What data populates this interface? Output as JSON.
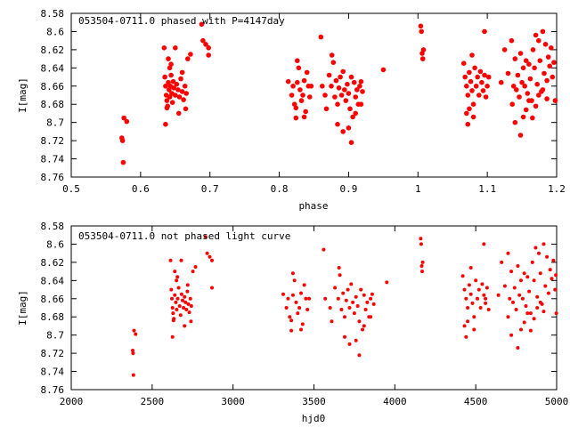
{
  "chart_data": [
    {
      "type": "scatter",
      "title": "053504-0711.0 phased with P=4147day",
      "xlabel": "phase",
      "ylabel": "I[mag]",
      "xlim": [
        0.5,
        1.2
      ],
      "ylim": [
        8.58,
        8.76
      ],
      "y_inverted": true,
      "grid": false,
      "color": "#ff0000",
      "xticks": [
        "0.5",
        "0.6",
        "0.7",
        "0.8",
        "0.9",
        "1",
        "1.1",
        "1.2"
      ],
      "yticks": [
        "8.58",
        "8.6",
        "8.62",
        "8.64",
        "8.66",
        "8.68",
        "8.7",
        "8.72",
        "8.74",
        "8.76"
      ],
      "points": [
        [
          0.573,
          8.717
        ],
        [
          0.574,
          8.72
        ],
        [
          0.575,
          8.744
        ],
        [
          0.576,
          8.695
        ],
        [
          0.58,
          8.699
        ],
        [
          0.635,
          8.65
        ],
        [
          0.636,
          8.66
        ],
        [
          0.637,
          8.67
        ],
        [
          0.638,
          8.676
        ],
        [
          0.639,
          8.682
        ],
        [
          0.64,
          8.656
        ],
        [
          0.641,
          8.664
        ],
        [
          0.642,
          8.672
        ],
        [
          0.643,
          8.66
        ],
        [
          0.644,
          8.648
        ],
        [
          0.645,
          8.668
        ],
        [
          0.646,
          8.678
        ],
        [
          0.647,
          8.655
        ],
        [
          0.648,
          8.662
        ],
        [
          0.65,
          8.67
        ],
        [
          0.652,
          8.658
        ],
        [
          0.654,
          8.664
        ],
        [
          0.656,
          8.672
        ],
        [
          0.658,
          8.652
        ],
        [
          0.66,
          8.666
        ],
        [
          0.662,
          8.675
        ],
        [
          0.664,
          8.66
        ],
        [
          0.666,
          8.668
        ],
        [
          0.636,
          8.702
        ],
        [
          0.638,
          8.684
        ],
        [
          0.64,
          8.63
        ],
        [
          0.644,
          8.636
        ],
        [
          0.65,
          8.618
        ],
        [
          0.655,
          8.69
        ],
        [
          0.66,
          8.645
        ],
        [
          0.665,
          8.685
        ],
        [
          0.634,
          8.618
        ],
        [
          0.642,
          8.64
        ],
        [
          0.668,
          8.63
        ],
        [
          0.672,
          8.625
        ],
        [
          0.688,
          8.592
        ],
        [
          0.69,
          8.61
        ],
        [
          0.694,
          8.614
        ],
        [
          0.698,
          8.618
        ],
        [
          0.698,
          8.626
        ],
        [
          0.813,
          8.655
        ],
        [
          0.818,
          8.67
        ],
        [
          0.82,
          8.66
        ],
        [
          0.822,
          8.68
        ],
        [
          0.824,
          8.684
        ],
        [
          0.826,
          8.656
        ],
        [
          0.828,
          8.64
        ],
        [
          0.83,
          8.664
        ],
        [
          0.832,
          8.676
        ],
        [
          0.834,
          8.67
        ],
        [
          0.836,
          8.654
        ],
        [
          0.838,
          8.688
        ],
        [
          0.84,
          8.645
        ],
        [
          0.842,
          8.66
        ],
        [
          0.844,
          8.672
        ],
        [
          0.824,
          8.695
        ],
        [
          0.826,
          8.632
        ],
        [
          0.846,
          8.66
        ],
        [
          0.836,
          8.694
        ],
        [
          0.86,
          8.606
        ],
        [
          0.862,
          8.66
        ],
        [
          0.866,
          8.67
        ],
        [
          0.868,
          8.685
        ],
        [
          0.872,
          8.648
        ],
        [
          0.875,
          8.66
        ],
        [
          0.878,
          8.634
        ],
        [
          0.88,
          8.672
        ],
        [
          0.882,
          8.654
        ],
        [
          0.884,
          8.68
        ],
        [
          0.886,
          8.662
        ],
        [
          0.888,
          8.65
        ],
        [
          0.89,
          8.67
        ],
        [
          0.892,
          8.644
        ],
        [
          0.894,
          8.664
        ],
        [
          0.896,
          8.676
        ],
        [
          0.898,
          8.658
        ],
        [
          0.9,
          8.668
        ],
        [
          0.902,
          8.685
        ],
        [
          0.904,
          8.65
        ],
        [
          0.906,
          8.694
        ],
        [
          0.908,
          8.656
        ],
        [
          0.91,
          8.672
        ],
        [
          0.912,
          8.664
        ],
        [
          0.914,
          8.68
        ],
        [
          0.916,
          8.66
        ],
        [
          0.918,
          8.655
        ],
        [
          0.92,
          8.666
        ],
        [
          0.876,
          8.626
        ],
        [
          0.884,
          8.702
        ],
        [
          0.892,
          8.71
        ],
        [
          0.9,
          8.706
        ],
        [
          0.904,
          8.722
        ],
        [
          0.91,
          8.69
        ],
        [
          0.918,
          8.68
        ],
        [
          0.95,
          8.642
        ],
        [
          1.004,
          8.594
        ],
        [
          1.005,
          8.6
        ],
        [
          1.006,
          8.624
        ],
        [
          1.007,
          8.63
        ],
        [
          1.008,
          8.62
        ],
        [
          1.066,
          8.635
        ],
        [
          1.068,
          8.65
        ],
        [
          1.07,
          8.66
        ],
        [
          1.072,
          8.67
        ],
        [
          1.074,
          8.645
        ],
        [
          1.076,
          8.655
        ],
        [
          1.078,
          8.665
        ],
        [
          1.08,
          8.68
        ],
        [
          1.082,
          8.64
        ],
        [
          1.084,
          8.66
        ],
        [
          1.086,
          8.65
        ],
        [
          1.088,
          8.67
        ],
        [
          1.09,
          8.644
        ],
        [
          1.092,
          8.656
        ],
        [
          1.094,
          8.665
        ],
        [
          1.096,
          8.648
        ],
        [
          1.098,
          8.672
        ],
        [
          1.1,
          8.66
        ],
        [
          1.102,
          8.65
        ],
        [
          1.07,
          8.69
        ],
        [
          1.072,
          8.702
        ],
        [
          1.074,
          8.685
        ],
        [
          1.078,
          8.626
        ],
        [
          1.096,
          8.6
        ],
        [
          1.08,
          8.694
        ],
        [
          1.12,
          8.656
        ],
        [
          1.125,
          8.62
        ],
        [
          1.13,
          8.646
        ],
        [
          1.135,
          8.61
        ],
        [
          1.138,
          8.66
        ],
        [
          1.14,
          8.63
        ],
        [
          1.142,
          8.664
        ],
        [
          1.144,
          8.648
        ],
        [
          1.146,
          8.672
        ],
        [
          1.148,
          8.624
        ],
        [
          1.15,
          8.656
        ],
        [
          1.152,
          8.64
        ],
        [
          1.154,
          8.66
        ],
        [
          1.156,
          8.632
        ],
        [
          1.158,
          8.668
        ],
        [
          1.16,
          8.636
        ],
        [
          1.162,
          8.652
        ],
        [
          1.164,
          8.676
        ],
        [
          1.166,
          8.62
        ],
        [
          1.168,
          8.64
        ],
        [
          1.17,
          8.604
        ],
        [
          1.172,
          8.658
        ],
        [
          1.174,
          8.61
        ],
        [
          1.176,
          8.632
        ],
        [
          1.178,
          8.666
        ],
        [
          1.18,
          8.6
        ],
        [
          1.182,
          8.646
        ],
        [
          1.184,
          8.614
        ],
        [
          1.186,
          8.654
        ],
        [
          1.188,
          8.628
        ],
        [
          1.19,
          8.638
        ],
        [
          1.192,
          8.618
        ],
        [
          1.194,
          8.65
        ],
        [
          1.196,
          8.634
        ],
        [
          1.198,
          8.676
        ],
        [
          1.136,
          8.68
        ],
        [
          1.14,
          8.7
        ],
        [
          1.148,
          8.714
        ],
        [
          1.152,
          8.694
        ],
        [
          1.156,
          8.686
        ],
        [
          1.16,
          8.676
        ],
        [
          1.165,
          8.695
        ],
        [
          1.17,
          8.682
        ],
        [
          1.174,
          8.67
        ],
        [
          1.18,
          8.664
        ],
        [
          1.186,
          8.674
        ]
      ]
    },
    {
      "type": "scatter",
      "title": "053504-0711.0 not phased light curve",
      "xlabel": "hjd0",
      "ylabel": "I[mag]",
      "xlim": [
        2000,
        5000
      ],
      "ylim": [
        8.58,
        8.76
      ],
      "y_inverted": true,
      "grid": false,
      "color": "#ff0000",
      "xticks": [
        "2000",
        "2500",
        "3000",
        "3500",
        "4000",
        "4500",
        "5000"
      ],
      "yticks": [
        "8.58",
        "8.6",
        "8.62",
        "8.64",
        "8.66",
        "8.68",
        "8.7",
        "8.72",
        "8.74",
        "8.76"
      ],
      "points": [
        [
          2380,
          8.717
        ],
        [
          2382,
          8.72
        ],
        [
          2384,
          8.744
        ],
        [
          2388,
          8.695
        ],
        [
          2398,
          8.699
        ],
        [
          2618,
          8.65
        ],
        [
          2622,
          8.66
        ],
        [
          2626,
          8.67
        ],
        [
          2630,
          8.676
        ],
        [
          2634,
          8.682
        ],
        [
          2640,
          8.656
        ],
        [
          2646,
          8.664
        ],
        [
          2652,
          8.672
        ],
        [
          2658,
          8.66
        ],
        [
          2664,
          8.648
        ],
        [
          2670,
          8.668
        ],
        [
          2676,
          8.678
        ],
        [
          2682,
          8.655
        ],
        [
          2688,
          8.662
        ],
        [
          2694,
          8.67
        ],
        [
          2700,
          8.658
        ],
        [
          2706,
          8.664
        ],
        [
          2712,
          8.672
        ],
        [
          2718,
          8.652
        ],
        [
          2724,
          8.666
        ],
        [
          2730,
          8.675
        ],
        [
          2736,
          8.66
        ],
        [
          2742,
          8.668
        ],
        [
          2626,
          8.702
        ],
        [
          2632,
          8.684
        ],
        [
          2640,
          8.63
        ],
        [
          2656,
          8.636
        ],
        [
          2680,
          8.618
        ],
        [
          2700,
          8.69
        ],
        [
          2720,
          8.645
        ],
        [
          2740,
          8.685
        ],
        [
          2614,
          8.618
        ],
        [
          2650,
          8.64
        ],
        [
          2752,
          8.63
        ],
        [
          2768,
          8.625
        ],
        [
          2830,
          8.592
        ],
        [
          2840,
          8.61
        ],
        [
          2856,
          8.614
        ],
        [
          2870,
          8.618
        ],
        [
          2870,
          8.648
        ],
        [
          3310,
          8.655
        ],
        [
          3330,
          8.67
        ],
        [
          3340,
          8.66
        ],
        [
          3350,
          8.68
        ],
        [
          3360,
          8.684
        ],
        [
          3370,
          8.656
        ],
        [
          3380,
          8.64
        ],
        [
          3390,
          8.664
        ],
        [
          3400,
          8.676
        ],
        [
          3410,
          8.67
        ],
        [
          3420,
          8.654
        ],
        [
          3430,
          8.688
        ],
        [
          3440,
          8.645
        ],
        [
          3450,
          8.66
        ],
        [
          3460,
          8.672
        ],
        [
          3360,
          8.695
        ],
        [
          3370,
          8.632
        ],
        [
          3470,
          8.66
        ],
        [
          3420,
          8.694
        ],
        [
          3560,
          8.606
        ],
        [
          3570,
          8.66
        ],
        [
          3600,
          8.67
        ],
        [
          3610,
          8.685
        ],
        [
          3630,
          8.648
        ],
        [
          3650,
          8.66
        ],
        [
          3660,
          8.634
        ],
        [
          3670,
          8.672
        ],
        [
          3680,
          8.654
        ],
        [
          3690,
          8.68
        ],
        [
          3700,
          8.662
        ],
        [
          3710,
          8.65
        ],
        [
          3720,
          8.67
        ],
        [
          3730,
          8.644
        ],
        [
          3740,
          8.664
        ],
        [
          3750,
          8.676
        ],
        [
          3760,
          8.658
        ],
        [
          3770,
          8.668
        ],
        [
          3780,
          8.685
        ],
        [
          3790,
          8.65
        ],
        [
          3800,
          8.694
        ],
        [
          3810,
          8.656
        ],
        [
          3820,
          8.672
        ],
        [
          3830,
          8.664
        ],
        [
          3840,
          8.68
        ],
        [
          3850,
          8.66
        ],
        [
          3860,
          8.655
        ],
        [
          3870,
          8.666
        ],
        [
          3655,
          8.626
        ],
        [
          3690,
          8.702
        ],
        [
          3720,
          8.71
        ],
        [
          3760,
          8.706
        ],
        [
          3780,
          8.722
        ],
        [
          3810,
          8.69
        ],
        [
          3850,
          8.68
        ],
        [
          3950,
          8.642
        ],
        [
          4160,
          8.594
        ],
        [
          4163,
          8.6
        ],
        [
          4166,
          8.624
        ],
        [
          4169,
          8.63
        ],
        [
          4172,
          8.62
        ],
        [
          4420,
          8.635
        ],
        [
          4430,
          8.65
        ],
        [
          4440,
          8.66
        ],
        [
          4450,
          8.67
        ],
        [
          4460,
          8.645
        ],
        [
          4470,
          8.655
        ],
        [
          4480,
          8.665
        ],
        [
          4490,
          8.68
        ],
        [
          4500,
          8.64
        ],
        [
          4510,
          8.66
        ],
        [
          4520,
          8.65
        ],
        [
          4530,
          8.67
        ],
        [
          4540,
          8.644
        ],
        [
          4550,
          8.656
        ],
        [
          4560,
          8.665
        ],
        [
          4570,
          8.648
        ],
        [
          4580,
          8.672
        ],
        [
          4430,
          8.69
        ],
        [
          4440,
          8.702
        ],
        [
          4450,
          8.685
        ],
        [
          4470,
          8.626
        ],
        [
          4550,
          8.6
        ],
        [
          4490,
          8.694
        ],
        [
          4560,
          8.66
        ],
        [
          4640,
          8.656
        ],
        [
          4660,
          8.62
        ],
        [
          4680,
          8.646
        ],
        [
          4700,
          8.61
        ],
        [
          4710,
          8.66
        ],
        [
          4720,
          8.63
        ],
        [
          4730,
          8.664
        ],
        [
          4740,
          8.648
        ],
        [
          4750,
          8.672
        ],
        [
          4760,
          8.624
        ],
        [
          4770,
          8.656
        ],
        [
          4780,
          8.64
        ],
        [
          4790,
          8.66
        ],
        [
          4800,
          8.632
        ],
        [
          4810,
          8.668
        ],
        [
          4820,
          8.636
        ],
        [
          4830,
          8.652
        ],
        [
          4840,
          8.676
        ],
        [
          4850,
          8.62
        ],
        [
          4860,
          8.64
        ],
        [
          4870,
          8.604
        ],
        [
          4880,
          8.658
        ],
        [
          4890,
          8.61
        ],
        [
          4900,
          8.632
        ],
        [
          4910,
          8.666
        ],
        [
          4920,
          8.6
        ],
        [
          4930,
          8.646
        ],
        [
          4940,
          8.614
        ],
        [
          4950,
          8.654
        ],
        [
          4960,
          8.628
        ],
        [
          4970,
          8.638
        ],
        [
          4980,
          8.618
        ],
        [
          4990,
          8.65
        ],
        [
          4995,
          8.634
        ],
        [
          4998,
          8.676
        ],
        [
          4700,
          8.68
        ],
        [
          4720,
          8.7
        ],
        [
          4760,
          8.714
        ],
        [
          4780,
          8.694
        ],
        [
          4800,
          8.686
        ],
        [
          4820,
          8.676
        ],
        [
          4840,
          8.695
        ],
        [
          4860,
          8.682
        ],
        [
          4880,
          8.67
        ],
        [
          4900,
          8.664
        ],
        [
          4920,
          8.674
        ]
      ]
    }
  ]
}
